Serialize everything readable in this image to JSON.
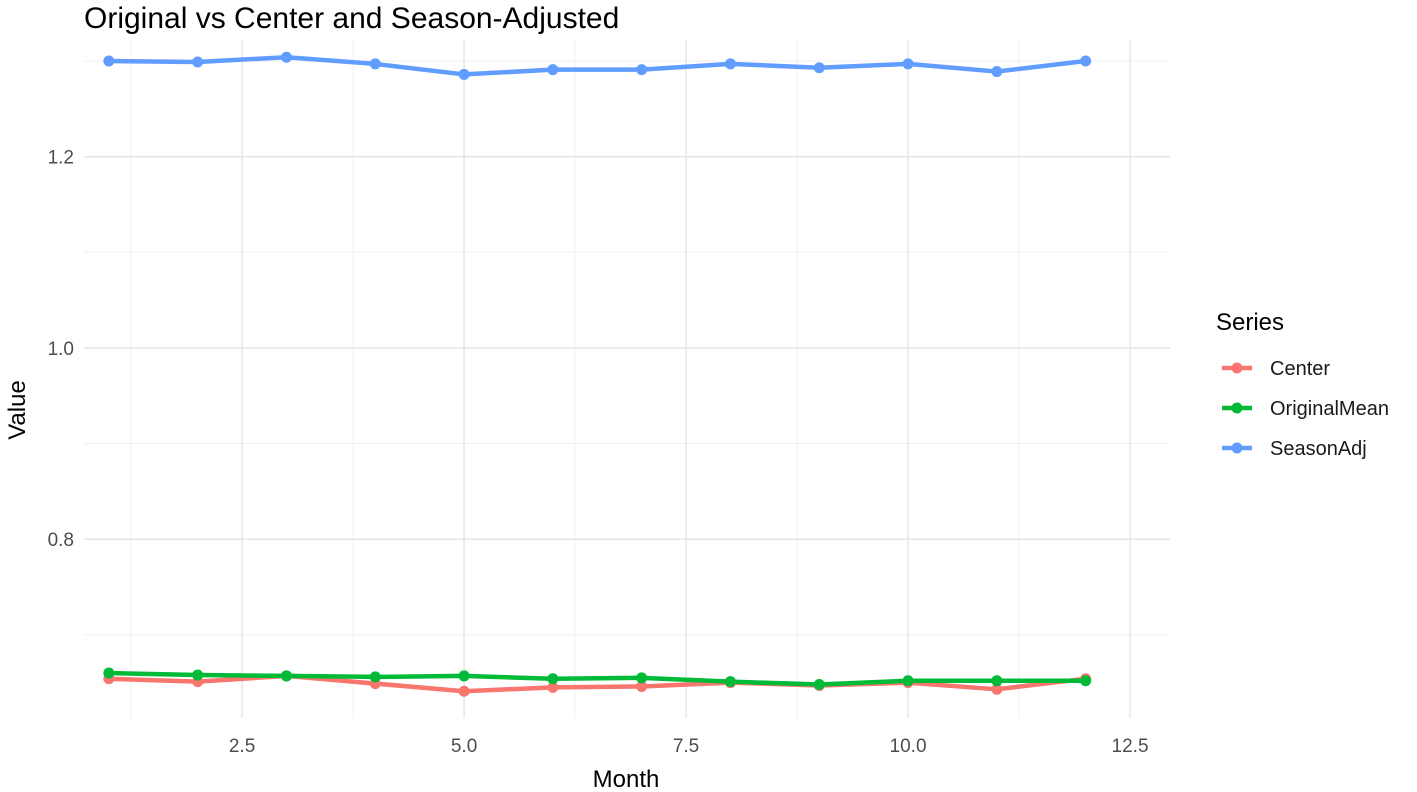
{
  "chart_data": {
    "type": "line",
    "title": "Original vs Center and Season-Adjusted",
    "xlabel": "Month",
    "ylabel": "Value",
    "xlim": [
      0.72,
      12.95
    ],
    "ylim": [
      0.613,
      1.322
    ],
    "x_ticks": [
      2.5,
      5.0,
      7.5,
      10.0,
      12.5
    ],
    "x_tick_labels": [
      "2.5",
      "5.0",
      "7.5",
      "10.0",
      "12.5"
    ],
    "y_ticks": [
      0.8,
      1.0,
      1.2
    ],
    "y_tick_labels": [
      "0.8",
      "1.0",
      "1.2"
    ],
    "grid": true,
    "legend": {
      "title": "Series",
      "position": "right"
    },
    "x": [
      1,
      2,
      3,
      4,
      5,
      6,
      7,
      8,
      9,
      10,
      11,
      12
    ],
    "series": [
      {
        "name": "Center",
        "color": "#F8766D",
        "values": [
          0.654,
          0.651,
          0.657,
          0.649,
          0.641,
          0.645,
          0.646,
          0.65,
          0.647,
          0.65,
          0.643,
          0.654
        ]
      },
      {
        "name": "OriginalMean",
        "color": "#00BA38",
        "values": [
          0.66,
          0.658,
          0.657,
          0.656,
          0.657,
          0.654,
          0.655,
          0.651,
          0.648,
          0.652,
          0.652,
          0.652
        ]
      },
      {
        "name": "SeasonAdj",
        "color": "#619CFF",
        "values": [
          1.3,
          1.299,
          1.304,
          1.297,
          1.286,
          1.291,
          1.291,
          1.297,
          1.293,
          1.297,
          1.289,
          1.3
        ]
      }
    ]
  }
}
